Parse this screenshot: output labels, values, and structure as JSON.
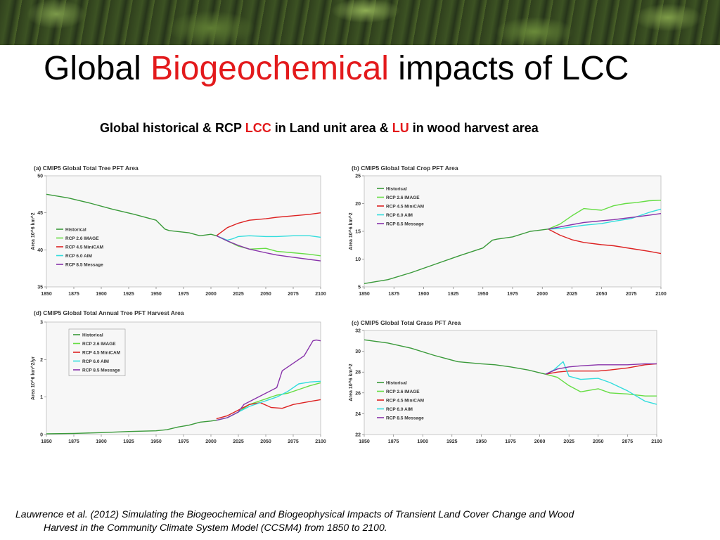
{
  "slide": {
    "title_part1": "Global ",
    "title_highlight": "Biogeochemical",
    "title_part2": " impacts of LCC",
    "subtitle_part1": "Global historical & RCP ",
    "subtitle_lcc": "LCC",
    "subtitle_part2": " in Land unit area & ",
    "subtitle_lu": "LU",
    "subtitle_part3": " in wood harvest area",
    "citation_line1": "Lauwrence et al. (2012) Simulating the Biogeochemical and Biogeophysical Impacts of Transient Land Cover Change and Wood",
    "citation_line2": "Harvest in the Community Climate System Model (CCSM4) from 1850 to 2100.",
    "accent_color": "#e31a1c"
  },
  "series_colors": {
    "Historical": "#3a9a3a",
    "RCP 2.6 IMAGE": "#66dd44",
    "RCP 4.5 MiniCAM": "#dd2222",
    "RCP 6.0 AIM": "#33dddd",
    "RCP 8.5 Message": "#8833aa"
  },
  "chart_data": [
    {
      "id": "a",
      "type": "line",
      "title": "(a) CMIP5 Global Total Tree PFT Area",
      "ylabel": "Area 10^6 km^2",
      "xlim": [
        1850,
        2100
      ],
      "ylim": [
        35,
        50
      ],
      "xticks": [
        1850,
        1875,
        1900,
        1925,
        1950,
        1975,
        2000,
        2025,
        2050,
        2075,
        2100
      ],
      "yticks": [
        35,
        40,
        45,
        50
      ],
      "legend_position": "middle-left",
      "series": [
        {
          "name": "Historical",
          "x": [
            1850,
            1870,
            1890,
            1910,
            1930,
            1950,
            1958,
            1962,
            1980,
            1990,
            2000,
            2005
          ],
          "y": [
            47.5,
            47.0,
            46.3,
            45.5,
            44.8,
            44.0,
            42.8,
            42.6,
            42.3,
            41.9,
            42.1,
            41.9
          ]
        },
        {
          "name": "RCP 2.6 IMAGE",
          "x": [
            2005,
            2015,
            2025,
            2035,
            2050,
            2060,
            2075,
            2090,
            2100
          ],
          "y": [
            41.9,
            41.2,
            40.5,
            40.1,
            40.2,
            39.8,
            39.6,
            39.4,
            39.2
          ]
        },
        {
          "name": "RCP 4.5 MiniCAM",
          "x": [
            2005,
            2015,
            2025,
            2035,
            2050,
            2060,
            2075,
            2090,
            2100
          ],
          "y": [
            41.9,
            43.0,
            43.6,
            44.0,
            44.2,
            44.4,
            44.6,
            44.8,
            45.0
          ]
        },
        {
          "name": "RCP 6.0 AIM",
          "x": [
            2005,
            2015,
            2020,
            2025,
            2035,
            2050,
            2060,
            2075,
            2090,
            2100
          ],
          "y": [
            41.9,
            41.3,
            41.5,
            41.8,
            41.9,
            41.8,
            41.8,
            41.9,
            41.9,
            41.7
          ]
        },
        {
          "name": "RCP 8.5 Message",
          "x": [
            2005,
            2015,
            2025,
            2035,
            2050,
            2060,
            2075,
            2090,
            2100
          ],
          "y": [
            41.9,
            41.2,
            40.6,
            40.1,
            39.6,
            39.3,
            39.0,
            38.7,
            38.5
          ]
        }
      ]
    },
    {
      "id": "b",
      "type": "line",
      "title": "(b) CMIP5 Global Total Crop PFT Area",
      "ylabel": "Area 10^6 km^2",
      "xlim": [
        1850,
        2100
      ],
      "ylim": [
        5,
        25
      ],
      "xticks": [
        1850,
        1875,
        1900,
        1925,
        1950,
        1975,
        2000,
        2025,
        2050,
        2075,
        2100
      ],
      "yticks": [
        5,
        10,
        15,
        20,
        25
      ],
      "legend_position": "top-left",
      "series": [
        {
          "name": "Historical",
          "x": [
            1850,
            1870,
            1890,
            1910,
            1930,
            1950,
            1958,
            1962,
            1975,
            1990,
            2005
          ],
          "y": [
            5.6,
            6.3,
            7.6,
            9.1,
            10.6,
            12.0,
            13.4,
            13.6,
            14.0,
            15.0,
            15.4
          ]
        },
        {
          "name": "RCP 2.6 IMAGE",
          "x": [
            2005,
            2015,
            2025,
            2035,
            2040,
            2050,
            2060,
            2070,
            2080,
            2090,
            2100
          ],
          "y": [
            15.4,
            16.3,
            17.8,
            19.1,
            19.0,
            18.8,
            19.6,
            20.0,
            20.2,
            20.5,
            20.6
          ]
        },
        {
          "name": "RCP 4.5 MiniCAM",
          "x": [
            2005,
            2015,
            2025,
            2035,
            2050,
            2060,
            2075,
            2090,
            2100
          ],
          "y": [
            15.4,
            14.3,
            13.5,
            13.0,
            12.6,
            12.4,
            11.9,
            11.4,
            11.0
          ]
        },
        {
          "name": "RCP 6.0 AIM",
          "x": [
            2005,
            2015,
            2025,
            2035,
            2050,
            2060,
            2075,
            2090,
            2100
          ],
          "y": [
            15.4,
            15.5,
            15.8,
            16.1,
            16.4,
            16.8,
            17.3,
            18.4,
            19.0
          ]
        },
        {
          "name": "RCP 8.5 Message",
          "x": [
            2005,
            2015,
            2025,
            2035,
            2050,
            2060,
            2075,
            2090,
            2100
          ],
          "y": [
            15.4,
            15.8,
            16.2,
            16.6,
            16.9,
            17.1,
            17.5,
            17.9,
            18.2
          ]
        }
      ]
    },
    {
      "id": "d",
      "type": "line",
      "title": "(d) CMIP5 Global Total Annual Tree PFT Harvest Area",
      "ylabel": "Area 10^6 km^2/yr",
      "xlim": [
        1850,
        2100
      ],
      "ylim": [
        0,
        3
      ],
      "xticks": [
        1850,
        1875,
        1900,
        1925,
        1950,
        1975,
        2000,
        2025,
        2050,
        2075,
        2100
      ],
      "yticks": [
        0,
        1,
        2,
        3
      ],
      "legend_position": "top-left",
      "series": [
        {
          "name": "Historical",
          "x": [
            1850,
            1875,
            1900,
            1925,
            1950,
            1960,
            1970,
            1980,
            1990,
            2000,
            2005
          ],
          "y": [
            0.02,
            0.03,
            0.05,
            0.08,
            0.1,
            0.13,
            0.2,
            0.25,
            0.33,
            0.36,
            0.38
          ]
        },
        {
          "name": "RCP 2.6 IMAGE",
          "x": [
            2005,
            2015,
            2025,
            2035,
            2050,
            2060,
            2070,
            2080,
            2090,
            2100
          ],
          "y": [
            0.38,
            0.45,
            0.6,
            0.8,
            0.95,
            1.05,
            1.1,
            1.2,
            1.3,
            1.38
          ]
        },
        {
          "name": "RCP 4.5 MiniCAM",
          "x": [
            2005,
            2015,
            2025,
            2035,
            2045,
            2055,
            2065,
            2075,
            2090,
            2100
          ],
          "y": [
            0.42,
            0.5,
            0.65,
            0.8,
            0.85,
            0.72,
            0.7,
            0.8,
            0.88,
            0.93
          ]
        },
        {
          "name": "RCP 6.0 AIM",
          "x": [
            2005,
            2015,
            2025,
            2035,
            2050,
            2060,
            2070,
            2080,
            2090,
            2100
          ],
          "y": [
            0.38,
            0.45,
            0.6,
            0.75,
            0.9,
            1.0,
            1.15,
            1.35,
            1.4,
            1.42
          ]
        },
        {
          "name": "RCP 8.5 Message",
          "x": [
            2005,
            2015,
            2025,
            2030,
            2040,
            2050,
            2060,
            2065,
            2075,
            2085,
            2093,
            2096,
            2100
          ],
          "y": [
            0.38,
            0.45,
            0.6,
            0.8,
            0.95,
            1.1,
            1.25,
            1.7,
            1.9,
            2.1,
            2.5,
            2.52,
            2.5
          ]
        }
      ]
    },
    {
      "id": "c",
      "type": "line",
      "title": "(c) CMIP5 Global Total Grass PFT Area",
      "ylabel": "Area 10^6 km^2",
      "xlim": [
        1850,
        2100
      ],
      "ylim": [
        22,
        32
      ],
      "xticks": [
        1850,
        1875,
        1900,
        1925,
        1950,
        1975,
        2000,
        2025,
        2050,
        2075,
        2100
      ],
      "yticks": [
        22,
        24,
        26,
        28,
        30,
        32
      ],
      "legend_position": "bottom-left",
      "series": [
        {
          "name": "Historical",
          "x": [
            1850,
            1870,
            1890,
            1910,
            1930,
            1950,
            1962,
            1975,
            1990,
            2005
          ],
          "y": [
            31.1,
            30.8,
            30.3,
            29.6,
            29.0,
            28.8,
            28.7,
            28.5,
            28.2,
            27.8
          ]
        },
        {
          "name": "RCP 2.6 IMAGE",
          "x": [
            2005,
            2015,
            2025,
            2035,
            2040,
            2050,
            2060,
            2075,
            2090,
            2100
          ],
          "y": [
            27.8,
            27.5,
            26.7,
            26.1,
            26.2,
            26.4,
            26.0,
            25.9,
            25.7,
            25.7
          ]
        },
        {
          "name": "RCP 4.5 MiniCAM",
          "x": [
            2005,
            2015,
            2025,
            2035,
            2050,
            2060,
            2075,
            2090,
            2100
          ],
          "y": [
            27.8,
            28.0,
            28.1,
            28.1,
            28.1,
            28.2,
            28.4,
            28.7,
            28.8
          ]
        },
        {
          "name": "RCP 6.0 AIM",
          "x": [
            2005,
            2012,
            2020,
            2025,
            2035,
            2050,
            2060,
            2075,
            2090,
            2100
          ],
          "y": [
            27.8,
            28.2,
            29.0,
            27.6,
            27.3,
            27.4,
            27.0,
            26.2,
            25.2,
            24.9
          ]
        },
        {
          "name": "RCP 8.5 Message",
          "x": [
            2005,
            2015,
            2025,
            2035,
            2050,
            2060,
            2075,
            2090,
            2100
          ],
          "y": [
            27.8,
            28.3,
            28.5,
            28.6,
            28.7,
            28.7,
            28.7,
            28.8,
            28.8
          ]
        }
      ]
    }
  ]
}
